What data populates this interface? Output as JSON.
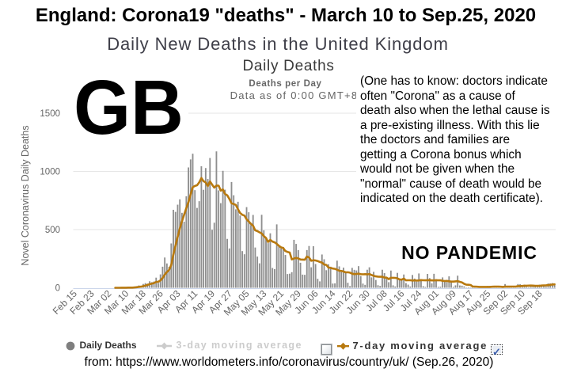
{
  "page": {
    "title": "England: Corona19 \"deaths\" - March 10 to Sep.25, 2020",
    "subtitle": "Daily New Deaths in the United Kingdom",
    "source_line": "from: https://www.worldometers.info/coronavirus/country/uk/ (Sep.26, 2020)"
  },
  "overlays": {
    "country_code": "GB",
    "annotation_lines": [
      "(One has to know: doctors indicate",
      "often \"Corona\" as a cause of",
      "death also when the lethal cause is",
      "a pre-existing illness. With this lie",
      "the doctors and families are",
      "getting a Corona bonus which",
      "would not be given when the",
      "\"normal\" cause of death would be",
      "indicated on the death certificate)."
    ],
    "stamp": "NO PANDEMIC"
  },
  "chart_data": {
    "type": "bar",
    "title": "Daily Deaths",
    "subtitle_line1": "Deaths per Day",
    "subtitle_line2": "Data as of 0:00 GMT+8",
    "ylabel": "Novel Coronavirus Daily Deaths",
    "ylim": [
      0,
      1500
    ],
    "y_ticks": [
      0,
      500,
      1000,
      1500
    ],
    "x_tick_interval": 8,
    "grid": true,
    "legend_position": "bottom",
    "categories": [
      "Feb 15",
      "Feb 16",
      "Feb 17",
      "Feb 18",
      "Feb 19",
      "Feb 20",
      "Feb 21",
      "Feb 22",
      "Feb 23",
      "Feb 24",
      "Feb 25",
      "Feb 26",
      "Feb 27",
      "Feb 28",
      "Feb 29",
      "Mar 01",
      "Mar 02",
      "Mar 03",
      "Mar 04",
      "Mar 05",
      "Mar 06",
      "Mar 07",
      "Mar 08",
      "Mar 09",
      "Mar 10",
      "Mar 11",
      "Mar 12",
      "Mar 13",
      "Mar 14",
      "Mar 15",
      "Mar 16",
      "Mar 17",
      "Mar 18",
      "Mar 19",
      "Mar 20",
      "Mar 21",
      "Mar 22",
      "Mar 23",
      "Mar 24",
      "Mar 25",
      "Mar 26",
      "Mar 27",
      "Mar 28",
      "Mar 29",
      "Mar 30",
      "Mar 31",
      "Apr 01",
      "Apr 02",
      "Apr 03",
      "Apr 04",
      "Apr 05",
      "Apr 06",
      "Apr 07",
      "Apr 08",
      "Apr 09",
      "Apr 10",
      "Apr 11",
      "Apr 12",
      "Apr 13",
      "Apr 14",
      "Apr 15",
      "Apr 16",
      "Apr 17",
      "Apr 18",
      "Apr 19",
      "Apr 20",
      "Apr 21",
      "Apr 22",
      "Apr 23",
      "Apr 24",
      "Apr 25",
      "Apr 26",
      "Apr 27",
      "Apr 28",
      "Apr 29",
      "Apr 30",
      "May 01",
      "May 02",
      "May 03",
      "May 04",
      "May 05",
      "May 06",
      "May 07",
      "May 08",
      "May 09",
      "May 10",
      "May 11",
      "May 12",
      "May 13",
      "May 14",
      "May 15",
      "May 16",
      "May 17",
      "May 18",
      "May 19",
      "May 20",
      "May 21",
      "May 22",
      "May 23",
      "May 24",
      "May 25",
      "May 26",
      "May 27",
      "May 28",
      "May 29",
      "May 30",
      "May 31",
      "Jun 01",
      "Jun 02",
      "Jun 03",
      "Jun 04",
      "Jun 05",
      "Jun 06",
      "Jun 07",
      "Jun 08",
      "Jun 09",
      "Jun 10",
      "Jun 11",
      "Jun 12",
      "Jun 13",
      "Jun 14",
      "Jun 15",
      "Jun 16",
      "Jun 17",
      "Jun 18",
      "Jun 19",
      "Jun 20",
      "Jun 21",
      "Jun 22",
      "Jun 23",
      "Jun 24",
      "Jun 25",
      "Jun 26",
      "Jun 27",
      "Jun 28",
      "Jun 29",
      "Jun 30",
      "Jul 01",
      "Jul 02",
      "Jul 03",
      "Jul 04",
      "Jul 05",
      "Jul 06",
      "Jul 07",
      "Jul 08",
      "Jul 09",
      "Jul 10",
      "Jul 11",
      "Jul 12",
      "Jul 13",
      "Jul 14",
      "Jul 15",
      "Jul 16",
      "Jul 17",
      "Jul 18",
      "Jul 19",
      "Jul 20",
      "Jul 21",
      "Jul 22",
      "Jul 23",
      "Jul 24",
      "Jul 25",
      "Jul 26",
      "Jul 27",
      "Jul 28",
      "Jul 29",
      "Jul 30",
      "Jul 31",
      "Aug 01",
      "Aug 02",
      "Aug 03",
      "Aug 04",
      "Aug 05",
      "Aug 06",
      "Aug 07",
      "Aug 08",
      "Aug 09",
      "Aug 10",
      "Aug 11",
      "Aug 12",
      "Aug 13",
      "Aug 14",
      "Aug 15",
      "Aug 16",
      "Aug 17",
      "Aug 18",
      "Aug 19",
      "Aug 20",
      "Aug 21",
      "Aug 22",
      "Aug 23",
      "Aug 24",
      "Aug 25",
      "Aug 26",
      "Aug 27",
      "Aug 28",
      "Aug 29",
      "Aug 30",
      "Aug 31",
      "Sep 01",
      "Sep 02",
      "Sep 03",
      "Sep 04",
      "Sep 05",
      "Sep 06",
      "Sep 07",
      "Sep 08",
      "Sep 09",
      "Sep 10",
      "Sep 11",
      "Sep 12",
      "Sep 13",
      "Sep 14",
      "Sep 15",
      "Sep 16",
      "Sep 17",
      "Sep 18",
      "Sep 19",
      "Sep 20",
      "Sep 21",
      "Sep 22",
      "Sep 23",
      "Sep 24",
      "Sep 25"
    ],
    "series": [
      {
        "name": "Daily Deaths",
        "type": "column",
        "color": "#8f8f8f",
        "visible": true,
        "values": [
          0,
          0,
          0,
          0,
          0,
          0,
          0,
          0,
          0,
          0,
          0,
          0,
          0,
          0,
          0,
          0,
          0,
          0,
          0,
          1,
          1,
          0,
          2,
          1,
          2,
          1,
          2,
          1,
          11,
          14,
          20,
          16,
          33,
          40,
          36,
          56,
          48,
          54,
          87,
          41,
          115,
          181,
          260,
          209,
          180,
          381,
          670,
          652,
          714,
          760,
          644,
          568,
          786,
          1034,
          1103,
          1152,
          839,
          686,
          744,
          1044,
          842,
          1029,
          935,
          1115,
          498,
          559,
          1172,
          837,
          727,
          1005,
          843,
          420,
          338,
          909,
          795,
          674,
          739,
          621,
          315,
          288,
          693,
          649,
          539,
          626,
          346,
          268,
          210,
          627,
          494,
          428,
          384,
          468,
          170,
          160,
          545,
          363,
          338,
          351,
          282,
          118,
          121,
          134,
          412,
          377,
          324,
          215,
          113,
          111,
          324,
          359,
          176,
          357,
          204,
          77,
          55,
          286,
          245,
          151,
          202,
          181,
          36,
          38,
          233,
          184,
          135,
          173,
          128,
          43,
          15,
          171,
          154,
          149,
          186,
          100,
          36,
          25,
          155,
          176,
          89,
          137,
          67,
          22,
          16,
          155,
          126,
          85,
          48,
          148,
          21,
          11,
          128,
          66,
          66,
          114,
          40,
          27,
          11,
          110,
          79,
          53,
          123,
          61,
          14,
          7,
          119,
          83,
          38,
          120,
          74,
          8,
          9,
          89,
          65,
          49,
          98,
          55,
          8,
          21,
          104,
          20,
          18,
          12,
          3,
          5,
          3,
          16,
          16,
          6,
          2,
          6,
          4,
          4,
          16,
          16,
          12,
          9,
          7,
          1,
          2,
          3,
          32,
          13,
          10,
          9,
          3,
          3,
          32,
          30,
          21,
          27,
          9,
          5,
          9,
          27,
          16,
          21,
          27,
          27,
          18,
          11,
          37,
          37,
          40,
          34
        ]
      },
      {
        "name": "3-day moving average",
        "type": "line",
        "color": "#cccccc",
        "visible": false,
        "derived": "3-day trailing moving average of Daily Deaths",
        "window": 3
      },
      {
        "name": "7-day moving average",
        "type": "line",
        "color": "#b8790f",
        "visible": true,
        "derived": "7-day trailing moving average of Daily Deaths",
        "window": 7
      }
    ]
  }
}
